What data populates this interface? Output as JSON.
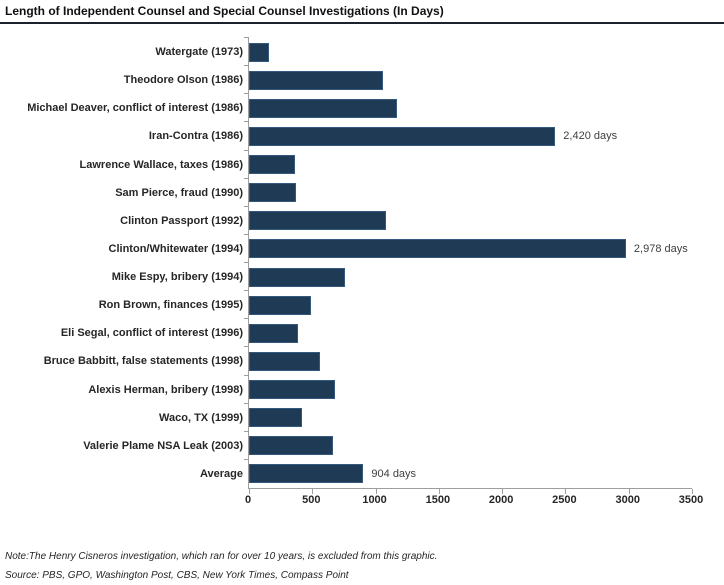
{
  "title": "Length of Independent Counsel and Special Counsel Investigations (In Days)",
  "note": "Note:The Henry Cisneros investigation, which ran for over 10 years, is excluded from this graphic.",
  "source": "Source: PBS, GPO, Washington Post, CBS, New York Times, Compass Point",
  "colors": {
    "bar_fill": "#1e3a55",
    "bar_border": "#33597e",
    "axis": "#9e9e9e",
    "title_rule": "#1c2130",
    "text": "#262626"
  },
  "chart_data": {
    "type": "bar",
    "orientation": "horizontal",
    "title": "Length of Independent Counsel and Special Counsel Investigations (In Days)",
    "xlabel": "",
    "ylabel": "",
    "xlim": [
      0,
      3500
    ],
    "x_ticks": [
      0,
      500,
      1000,
      1500,
      2000,
      2500,
      3000,
      3500
    ],
    "grid": false,
    "legend": false,
    "categories": [
      "Watergate (1973)",
      "Theodore Olson (1986)",
      "Michael Deaver, conflict of interest (1986)",
      "Iran-Contra (1986)",
      "Lawrence Wallace, taxes (1986)",
      "Sam Pierce, fraud (1990)",
      "Clinton Passport (1992)",
      "Clinton/Whitewater (1994)",
      "Mike Espy, bribery (1994)",
      "Ron Brown, finances (1995)",
      "Eli Segal, conflict of interest (1996)",
      "Bruce Babbitt, false statements (1998)",
      "Alexis Herman, bribery (1998)",
      "Waco, TX (1999)",
      "Valerie Plame NSA Leak (2003)",
      "Average"
    ],
    "values": [
      160,
      1060,
      1170,
      2420,
      365,
      370,
      1085,
      2978,
      755,
      490,
      390,
      560,
      680,
      420,
      665,
      904
    ],
    "bar_labels": [
      "",
      "",
      "",
      "2,420 days",
      "",
      "",
      "",
      "2,978 days",
      "",
      "",
      "",
      "",
      "",
      "",
      "",
      "904 days"
    ]
  }
}
